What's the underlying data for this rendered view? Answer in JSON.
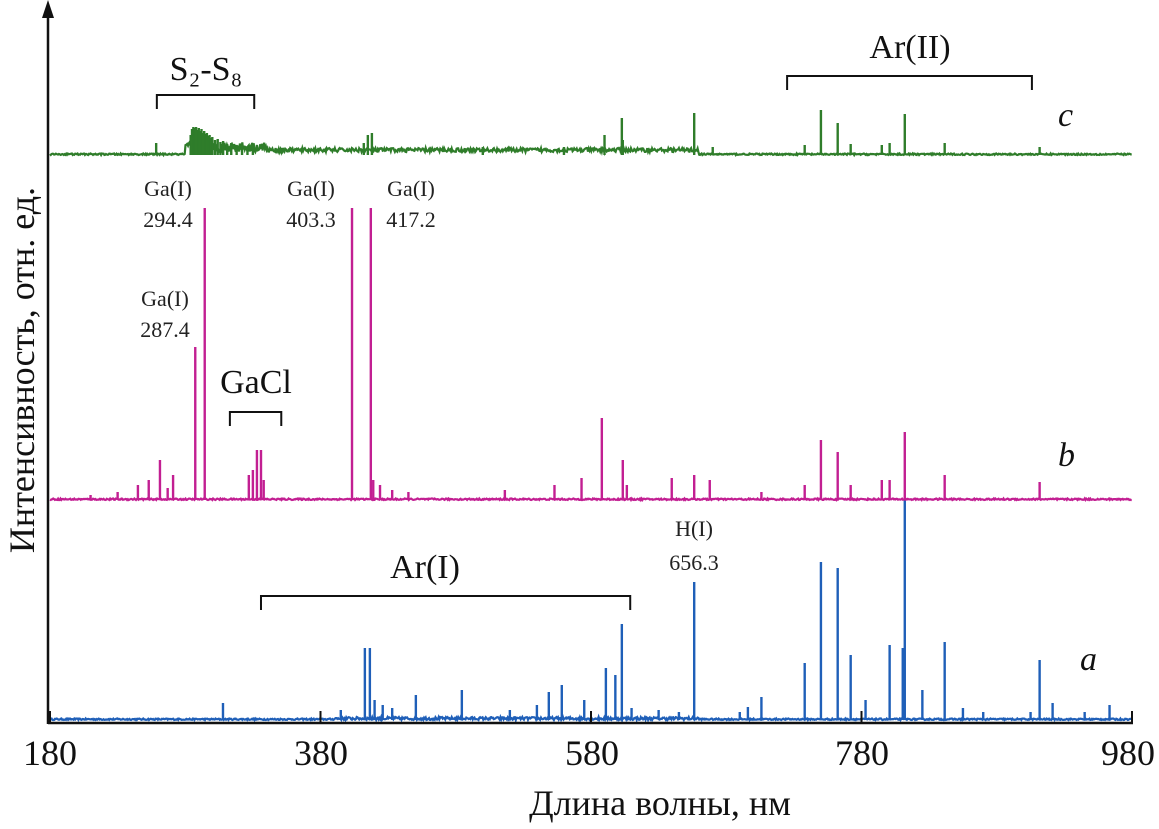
{
  "chart_data": {
    "type": "line",
    "xlabel": "Длина волны, нм",
    "ylabel": "Интенсивность, отн. ед.",
    "xlim": [
      180,
      980
    ],
    "xticks": [
      "180",
      "380",
      "580",
      "780",
      "980"
    ],
    "y_units": "arbitrary, stacked spectra",
    "ylim": [
      0,
      710
    ],
    "grid": false,
    "colors": {
      "a": "#1f5fb8",
      "b": "#c21f92",
      "c": "#2f7d2a"
    },
    "series": [
      {
        "name": "a",
        "offset": 0,
        "peaks": [
          [
            307.9,
            17
          ],
          [
            395,
            10
          ],
          [
            412.8,
            72
          ],
          [
            416.5,
            72
          ],
          [
            420,
            20
          ],
          [
            426,
            15
          ],
          [
            433,
            12
          ],
          [
            450.5,
            25
          ],
          [
            484.5,
            30
          ],
          [
            520,
            10
          ],
          [
            540,
            15
          ],
          [
            548.8,
            28
          ],
          [
            558.4,
            35
          ],
          [
            575,
            20
          ],
          [
            591,
            52
          ],
          [
            598,
            45
          ],
          [
            602.8,
            96
          ],
          [
            610,
            12
          ],
          [
            630,
            10
          ],
          [
            645,
            8
          ],
          [
            656.3,
            138
          ],
          [
            690,
            8
          ],
          [
            696,
            13
          ],
          [
            706,
            23
          ],
          [
            738,
            57
          ],
          [
            750,
            158
          ],
          [
            762.4,
            152
          ],
          [
            772,
            65
          ],
          [
            783,
            20
          ],
          [
            800.8,
            75
          ],
          [
            810.5,
            72
          ],
          [
            812,
            220
          ],
          [
            825,
            30
          ],
          [
            841.5,
            78
          ],
          [
            855,
            12
          ],
          [
            870,
            8
          ],
          [
            905,
            8
          ],
          [
            911.7,
            60
          ],
          [
            921.3,
            17
          ],
          [
            945,
            8
          ],
          [
            963.4,
            15
          ]
        ]
      },
      {
        "name": "b",
        "offset": 220,
        "peaks": [
          [
            210,
            5
          ],
          [
            230,
            8
          ],
          [
            245,
            15
          ],
          [
            253,
            20
          ],
          [
            261.3,
            40
          ],
          [
            267,
            12
          ],
          [
            271,
            25
          ],
          [
            287.4,
            153
          ],
          [
            294.4,
            292
          ],
          [
            327,
            25
          ],
          [
            330,
            30
          ],
          [
            333,
            50
          ],
          [
            336,
            50
          ],
          [
            338,
            20
          ],
          [
            403.3,
            292
          ],
          [
            417.2,
            292
          ],
          [
            419,
            20
          ],
          [
            424,
            15
          ],
          [
            433,
            10
          ],
          [
            445,
            8
          ],
          [
            516.3,
            10
          ],
          [
            553,
            15
          ],
          [
            573,
            22
          ],
          [
            588,
            82
          ],
          [
            603.5,
            40
          ],
          [
            606.5,
            15
          ],
          [
            639.7,
            22
          ],
          [
            656.3,
            25
          ],
          [
            667.8,
            20
          ],
          [
            706,
            8
          ],
          [
            738,
            15
          ],
          [
            750,
            60
          ],
          [
            762.4,
            48
          ],
          [
            772,
            15
          ],
          [
            795,
            20
          ],
          [
            800.8,
            20
          ],
          [
            812,
            68
          ],
          [
            841.5,
            25
          ],
          [
            911.7,
            18
          ]
        ]
      },
      {
        "name": "c",
        "offset": 565,
        "peaks": [
          [
            258.5,
            12
          ],
          [
            284,
            20
          ],
          [
            285,
            26
          ],
          [
            286,
            28
          ],
          [
            287,
            27
          ],
          [
            288,
            28
          ],
          [
            289,
            25
          ],
          [
            290,
            27
          ],
          [
            291,
            24
          ],
          [
            292,
            26
          ],
          [
            293,
            22
          ],
          [
            294,
            24
          ],
          [
            295,
            21
          ],
          [
            296,
            22
          ],
          [
            297,
            19
          ],
          [
            298,
            20
          ],
          [
            299,
            17
          ],
          [
            300,
            18
          ],
          [
            302,
            15
          ],
          [
            304,
            16
          ],
          [
            306,
            13
          ],
          [
            308,
            14
          ],
          [
            311,
            11
          ],
          [
            314,
            12
          ],
          [
            318,
            10
          ],
          [
            322,
            9
          ],
          [
            326,
            9
          ],
          [
            330,
            8
          ],
          [
            412,
            12
          ],
          [
            415,
            20
          ],
          [
            418,
            22
          ],
          [
            500,
            8
          ],
          [
            560,
            8
          ],
          [
            590,
            20
          ],
          [
            602.8,
            37
          ],
          [
            603.5,
            15
          ],
          [
            656.3,
            42
          ],
          [
            670,
            8
          ],
          [
            738,
            10
          ],
          [
            750,
            45
          ],
          [
            762.4,
            32
          ],
          [
            772,
            11
          ],
          [
            795,
            10
          ],
          [
            800.8,
            12
          ],
          [
            812,
            41
          ],
          [
            841.5,
            12
          ],
          [
            911.7,
            8
          ]
        ]
      }
    ],
    "annotations": {
      "peaks": [
        {
          "species": "Ga(I)",
          "wavelength": "294.4"
        },
        {
          "species": "Ga(I)",
          "wavelength": "287.4"
        },
        {
          "species": "Ga(I)",
          "wavelength": "403.3"
        },
        {
          "species": "Ga(I)",
          "wavelength": "417.2"
        },
        {
          "species": "H(I)",
          "wavelength": "656.3"
        }
      ],
      "bands": [
        {
          "label": "S₂-S₈",
          "range": [
            259,
            331
          ]
        },
        {
          "label": "GaCl",
          "range": [
            313,
            351
          ]
        },
        {
          "label": "Ar(I)",
          "range": [
            336,
            609
          ]
        },
        {
          "label": "Ar(II)",
          "range": [
            725,
            906
          ]
        }
      ],
      "series_labels": [
        "a",
        "b",
        "c"
      ]
    }
  }
}
